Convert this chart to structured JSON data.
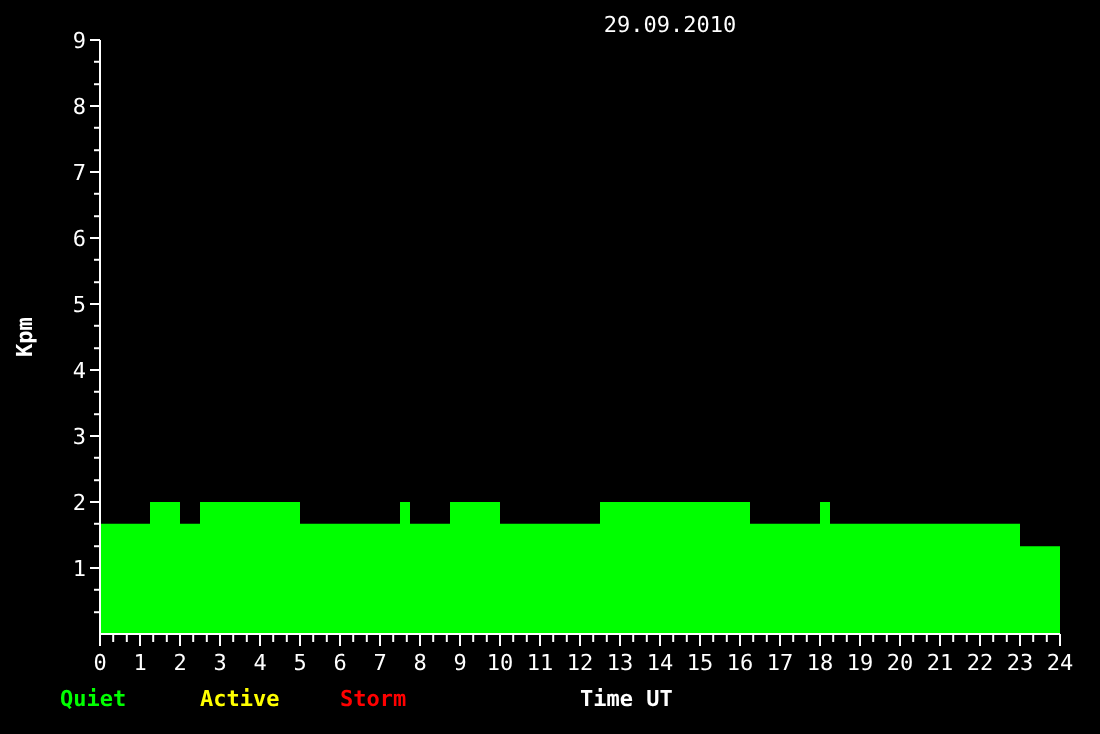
{
  "chart_data": {
    "type": "area",
    "title": "29.09.2010",
    "xlabel": "Time UT",
    "ylabel": "Kpm",
    "x": [
      0,
      1.25,
      2,
      2.5,
      5,
      7.5,
      7.75,
      8.75,
      10,
      12.5,
      16.25,
      18,
      18.25,
      23,
      24
    ],
    "series": [
      {
        "name": "Quiet",
        "color": "#00ff00",
        "values": [
          1.67,
          2,
          1.67,
          2,
          1.67,
          2,
          1.67,
          2,
          1.67,
          2,
          1.67,
          2,
          1.67,
          1.33,
          1.33
        ]
      },
      {
        "name": "Active",
        "color": "#ffff00",
        "values": [
          null,
          null,
          null,
          null,
          null,
          null,
          null,
          null,
          null,
          null,
          null,
          null,
          null,
          null,
          null
        ]
      },
      {
        "name": "Storm",
        "color": "#ff0000",
        "values": [
          null,
          null,
          null,
          null,
          null,
          null,
          null,
          null,
          null,
          null,
          null,
          null,
          null,
          null,
          null
        ]
      }
    ],
    "xlim": [
      0,
      24
    ],
    "ylim": [
      0,
      9
    ],
    "xticks": [
      0,
      {
        "value": 0.33,
        "label": null
      },
      {
        "value": 0.67,
        "label": null
      },
      1,
      {
        "value": 1.33,
        "label": null
      },
      {
        "value": 1.67,
        "label": null
      },
      2,
      {
        "value": 2.33,
        "label": null
      },
      {
        "value": 2.67,
        "label": null
      },
      3,
      {
        "value": 3.33,
        "label": null
      },
      {
        "value": 3.67,
        "label": null
      },
      4,
      {
        "value": 4.33,
        "label": null
      },
      {
        "value": 4.67,
        "label": null
      },
      5,
      {
        "value": 5.33,
        "label": null
      },
      {
        "value": 5.67,
        "label": null
      },
      6,
      {
        "value": 6.33,
        "label": null
      },
      {
        "value": 6.67,
        "label": null
      },
      7,
      {
        "value": 7.33,
        "label": null
      },
      {
        "value": 7.67,
        "label": null
      },
      8,
      {
        "value": 8.33,
        "label": null
      },
      {
        "value": 8.67,
        "label": null
      },
      9,
      {
        "value": 9.33,
        "label": null
      },
      {
        "value": 9.67,
        "label": null
      },
      10,
      {
        "value": 10.33,
        "label": null
      },
      {
        "value": 10.67,
        "label": null
      },
      11,
      {
        "value": 11.33,
        "label": null
      },
      {
        "value": 11.67,
        "label": null
      },
      12,
      {
        "value": 12.33,
        "label": null
      },
      {
        "value": 12.67,
        "label": null
      },
      13,
      {
        "value": 13.33,
        "label": null
      },
      {
        "value": 13.67,
        "label": null
      },
      14,
      {
        "value": 14.33,
        "label": null
      },
      {
        "value": 14.67,
        "label": null
      },
      15,
      {
        "value": 15.33,
        "label": null
      },
      {
        "value": 15.67,
        "label": null
      },
      16,
      {
        "value": 16.33,
        "label": null
      },
      {
        "value": 16.67,
        "label": null
      },
      17,
      {
        "value": 17.33,
        "label": null
      },
      {
        "value": 17.67,
        "label": null
      },
      18,
      {
        "value": 18.33,
        "label": null
      },
      {
        "value": 18.67,
        "label": null
      },
      19,
      {
        "value": 19.33,
        "label": null
      },
      {
        "value": 19.67,
        "label": null
      },
      20,
      {
        "value": 20.33,
        "label": null
      },
      {
        "value": 20.67,
        "label": null
      },
      21,
      {
        "value": 21.33,
        "label": null
      },
      {
        "value": 21.67,
        "label": null
      },
      22,
      {
        "value": 22.33,
        "label": null
      },
      {
        "value": 22.67,
        "label": null
      },
      23,
      {
        "value": 23.33,
        "label": null
      },
      {
        "value": 23.67,
        "label": null
      },
      24
    ],
    "yticks": [
      {
        "value": 0.33,
        "label": null
      },
      {
        "value": 0.67,
        "label": null
      },
      1,
      {
        "value": 1.33,
        "label": null
      },
      {
        "value": 1.67,
        "label": null
      },
      2,
      {
        "value": 2.33,
        "label": null
      },
      {
        "value": 2.67,
        "label": null
      },
      3,
      {
        "value": 3.33,
        "label": null
      },
      {
        "value": 3.67,
        "label": null
      },
      4,
      {
        "value": 4.33,
        "label": null
      },
      {
        "value": 4.67,
        "label": null
      },
      5,
      {
        "value": 5.33,
        "label": null
      },
      {
        "value": 5.67,
        "label": null
      },
      6,
      {
        "value": 6.33,
        "label": null
      },
      {
        "value": 6.67,
        "label": null
      },
      7,
      {
        "value": 7.33,
        "label": null
      },
      {
        "value": 7.67,
        "label": null
      },
      8,
      {
        "value": 8.33,
        "label": null
      },
      {
        "value": 8.67,
        "label": null
      },
      9
    ]
  }
}
